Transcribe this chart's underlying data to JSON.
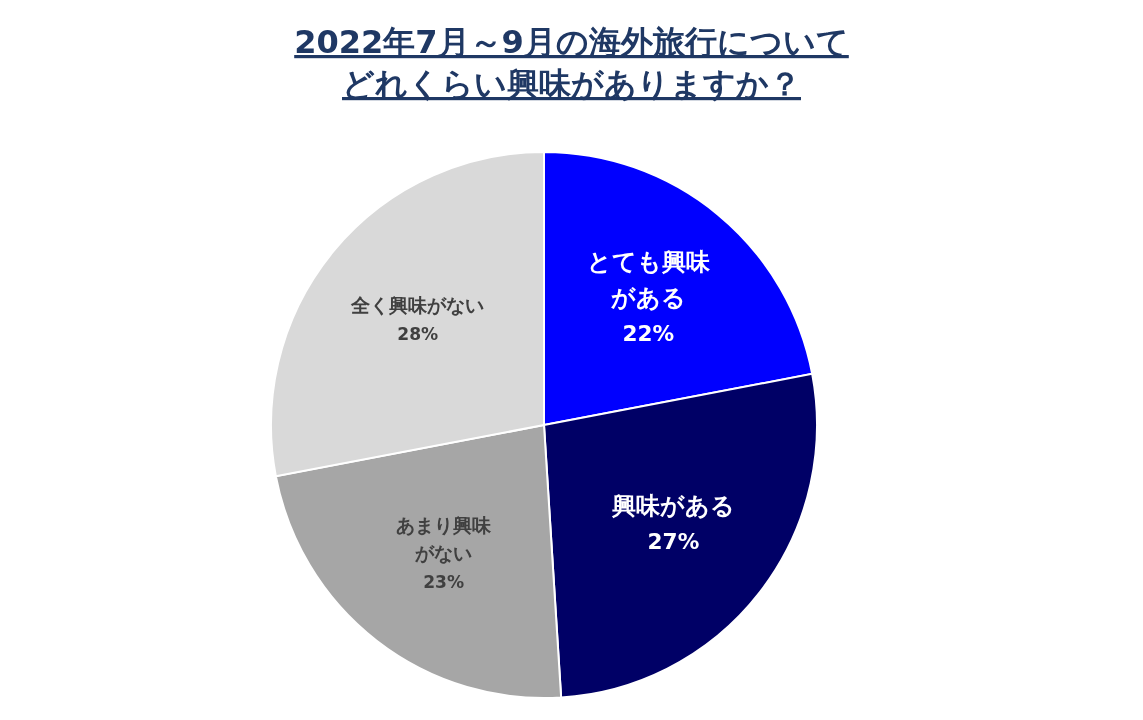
{
  "chart_data": {
    "type": "pie",
    "title": "2022年7月～9月の海外旅行についてどれくらい興味がありますか？",
    "categories": [
      "とても興味がある",
      "興味がある",
      "あまり興味がない",
      "全く興味がない"
    ],
    "values": [
      22,
      27,
      23,
      28
    ],
    "colors": [
      "#0000ff",
      "#000066",
      "#a6a6a6",
      "#d9d9d9"
    ],
    "value_labels": [
      "22%",
      "27%",
      "23%",
      "28%"
    ]
  }
}
